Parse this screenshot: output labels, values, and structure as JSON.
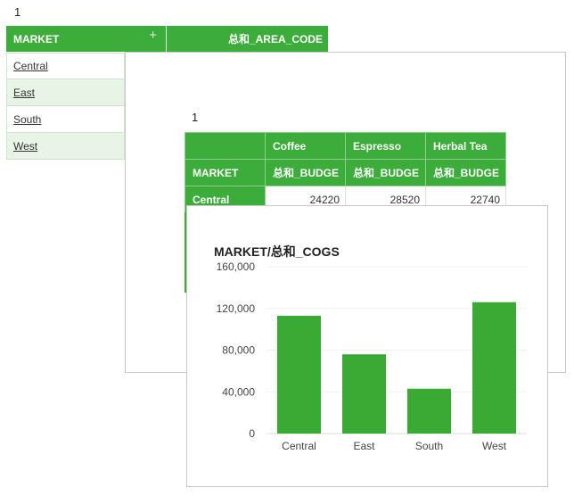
{
  "panel1": {
    "title": "1",
    "header_market": "MARKET",
    "header_area": "总和_AREA_CODE",
    "plus_icon": "+",
    "rows": [
      "Central",
      "East",
      "South",
      "West"
    ]
  },
  "panel2": {
    "title": "1",
    "products": [
      "Coffee",
      "Espresso",
      "Herbal Tea"
    ],
    "row_header": "MARKET",
    "measure_labels": [
      "总和_BUDGE",
      "总和_BUDGE",
      "总和_BUDGE"
    ],
    "row": {
      "market": "Central",
      "values": [
        "24220",
        "28520",
        "22740"
      ]
    }
  },
  "panel3": {
    "chart_title": "MARKET/总和_COGS",
    "accent": "#3aaa35"
  },
  "chart_data": {
    "type": "bar",
    "title": "MARKET/总和_COGS",
    "categories": [
      "Central",
      "East",
      "South",
      "West"
    ],
    "values": [
      113000,
      76000,
      43000,
      126000
    ],
    "ylim": [
      0,
      160000
    ],
    "yticks": [
      "0",
      "40,000",
      "80,000",
      "120,000",
      "160,000"
    ],
    "grid": true
  }
}
